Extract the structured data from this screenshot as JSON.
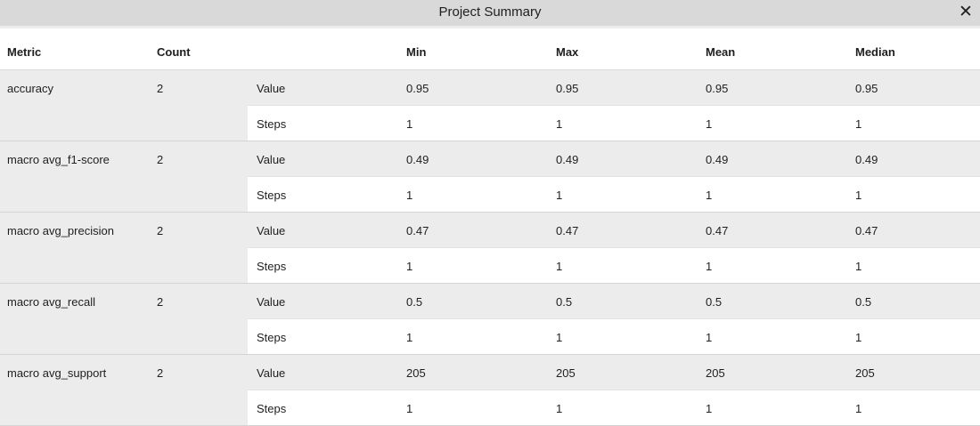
{
  "window": {
    "title": "Project Summary",
    "close_icon": "close-icon"
  },
  "table": {
    "columns": [
      "Metric",
      "Count",
      "",
      "Min",
      "Max",
      "Mean",
      "Median"
    ],
    "groups": [
      {
        "metric": "accuracy",
        "count": "2",
        "rows": [
          {
            "kind": "Value",
            "min": "0.95",
            "max": "0.95",
            "mean": "0.95",
            "median": "0.95"
          },
          {
            "kind": "Steps",
            "min": "1",
            "max": "1",
            "mean": "1",
            "median": "1"
          }
        ]
      },
      {
        "metric": "macro avg_f1-score",
        "count": "2",
        "rows": [
          {
            "kind": "Value",
            "min": "0.49",
            "max": "0.49",
            "mean": "0.49",
            "median": "0.49"
          },
          {
            "kind": "Steps",
            "min": "1",
            "max": "1",
            "mean": "1",
            "median": "1"
          }
        ]
      },
      {
        "metric": "macro avg_precision",
        "count": "2",
        "rows": [
          {
            "kind": "Value",
            "min": "0.47",
            "max": "0.47",
            "mean": "0.47",
            "median": "0.47"
          },
          {
            "kind": "Steps",
            "min": "1",
            "max": "1",
            "mean": "1",
            "median": "1"
          }
        ]
      },
      {
        "metric": "macro avg_recall",
        "count": "2",
        "rows": [
          {
            "kind": "Value",
            "min": "0.5",
            "max": "0.5",
            "mean": "0.5",
            "median": "0.5"
          },
          {
            "kind": "Steps",
            "min": "1",
            "max": "1",
            "mean": "1",
            "median": "1"
          }
        ]
      },
      {
        "metric": "macro avg_support",
        "count": "2",
        "rows": [
          {
            "kind": "Value",
            "min": "205",
            "max": "205",
            "mean": "205",
            "median": "205"
          },
          {
            "kind": "Steps",
            "min": "1",
            "max": "1",
            "mean": "1",
            "median": "1"
          }
        ]
      }
    ]
  }
}
